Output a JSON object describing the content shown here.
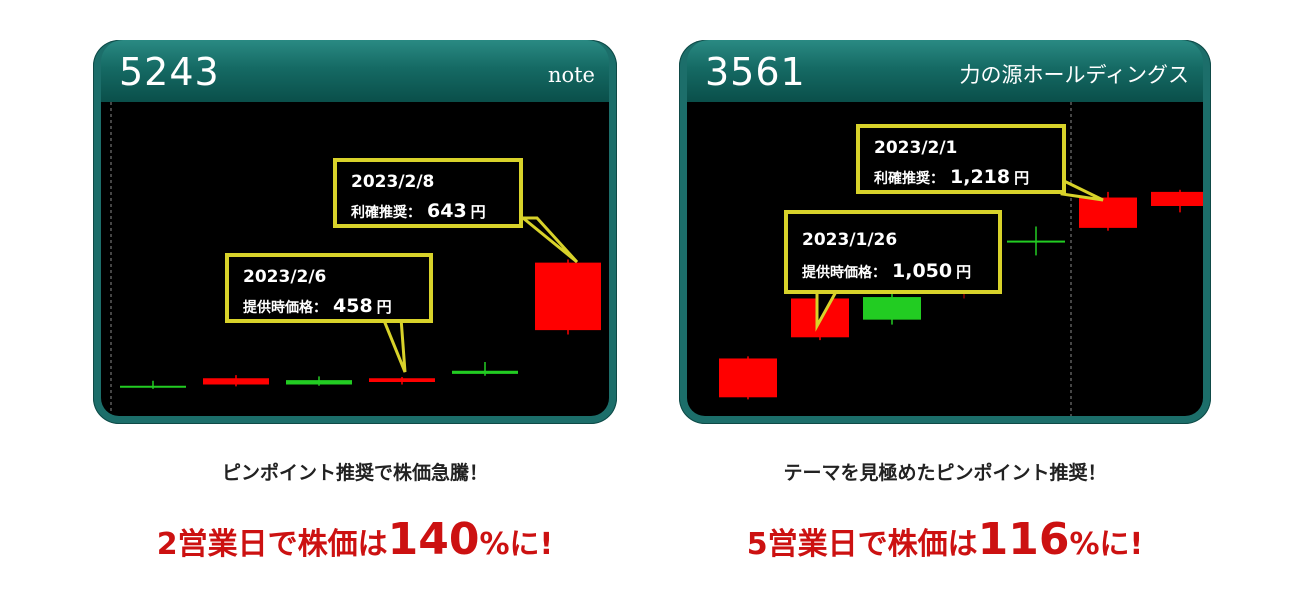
{
  "panels": [
    {
      "code": "5243",
      "company": "note",
      "callouts": [
        {
          "date": "2023/2/8",
          "label": "利確推奨：",
          "value": "643",
          "unit": "円"
        },
        {
          "date": "2023/2/6",
          "label": "提供時価格：",
          "value": "458",
          "unit": "円"
        }
      ],
      "subcaption": "ピンポイント推奨で株価急騰！",
      "headline": {
        "pre": "2営業日で株価は",
        "num": "140",
        "post": "%に!"
      }
    },
    {
      "code": "3561",
      "company": "力の源ホールディングス",
      "callouts": [
        {
          "date": "2023/2/1",
          "label": "利確推奨：",
          "value": "1,218",
          "unit": "円"
        },
        {
          "date": "2023/1/26",
          "label": "提供時価格：",
          "value": "1,050",
          "unit": "円"
        }
      ],
      "subcaption": "テーマを見極めたピンポイント推奨！",
      "headline": {
        "pre": "5営業日で株価は",
        "num": "116",
        "post": "%に!"
      }
    }
  ],
  "chart_data": [
    {
      "type": "candlestick",
      "colors": {
        "up": "#ff0000",
        "down": "#22cc22",
        "frame": "#1c6e6a",
        "callout_border": "#d8d22a"
      },
      "candles": [
        {
          "o": 446,
          "c": 443,
          "h": 454,
          "l": 441,
          "color": "down"
        },
        {
          "o": 448,
          "c": 458,
          "h": 463,
          "l": 445,
          "color": "up"
        },
        {
          "o": 455,
          "c": 448,
          "h": 461,
          "l": 446,
          "color": "down"
        },
        {
          "o": 452,
          "c": 458,
          "h": 460,
          "l": 448,
          "color": "up"
        },
        {
          "o": 470,
          "c": 465,
          "h": 484,
          "l": 462,
          "color": "down"
        },
        {
          "o": 535,
          "c": 643,
          "h": 648,
          "l": 528,
          "color": "up"
        }
      ]
    },
    {
      "type": "candlestick",
      "colors": {
        "up": "#ff0000",
        "down": "#22cc22",
        "frame": "#1c6e6a",
        "callout_border": "#d8d22a"
      },
      "candles": [
        {
          "o": 935,
          "c": 990,
          "h": 993,
          "l": 932,
          "color": "up"
        },
        {
          "o": 1020,
          "c": 1075,
          "h": 1080,
          "l": 1016,
          "color": "up"
        },
        {
          "o": 1077,
          "c": 1045,
          "h": 1084,
          "l": 1038,
          "color": "down"
        },
        {
          "o": 1089,
          "c": 1140,
          "h": 1146,
          "l": 1075,
          "color": "up",
          "faded": true
        },
        {
          "o": 1157,
          "c": 1157,
          "h": 1177,
          "l": 1136,
          "color": "down"
        },
        {
          "o": 1175,
          "c": 1218,
          "h": 1226,
          "l": 1171,
          "color": "up"
        },
        {
          "o": 1206,
          "c": 1226,
          "h": 1229,
          "l": 1197,
          "color": "up"
        }
      ]
    }
  ]
}
